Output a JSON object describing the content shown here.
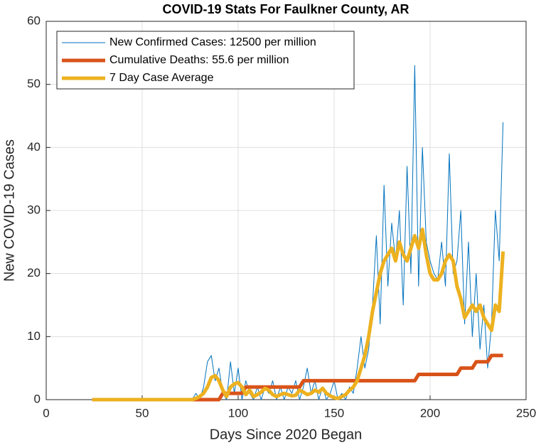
{
  "chart_data": {
    "type": "line",
    "title": "COVID-19 Stats For Faulkner County, AR",
    "xlabel": "Days Since 2020 Began",
    "ylabel": "New COVID-19 Cases",
    "xlim": [
      0,
      250
    ],
    "ylim": [
      0,
      60
    ],
    "xticks": [
      0,
      50,
      100,
      150,
      200,
      250
    ],
    "yticks": [
      0,
      10,
      20,
      30,
      40,
      50,
      60
    ],
    "grid": true,
    "legend": "upper left",
    "x": [
      24,
      26,
      28,
      30,
      32,
      34,
      36,
      38,
      40,
      42,
      44,
      46,
      48,
      50,
      52,
      54,
      56,
      58,
      60,
      62,
      64,
      66,
      68,
      70,
      72,
      74,
      76,
      78,
      80,
      82,
      84,
      86,
      88,
      90,
      92,
      94,
      96,
      98,
      100,
      102,
      104,
      106,
      108,
      110,
      112,
      114,
      116,
      118,
      120,
      122,
      124,
      126,
      128,
      130,
      132,
      134,
      136,
      138,
      140,
      142,
      144,
      146,
      148,
      150,
      152,
      154,
      156,
      158,
      160,
      162,
      164,
      166,
      168,
      170,
      172,
      174,
      176,
      178,
      180,
      182,
      184,
      186,
      188,
      190,
      192,
      194,
      196,
      198,
      200,
      202,
      204,
      206,
      208,
      210,
      212,
      214,
      216,
      218,
      220,
      222,
      224,
      226,
      228,
      230,
      232,
      234,
      236,
      238
    ],
    "series": [
      {
        "name": "New Confirmed Cases: 12500 per million",
        "color": "#0072bd",
        "width": 1,
        "values": [
          0,
          0,
          0,
          0,
          0,
          0,
          0,
          0,
          0,
          0,
          0,
          0,
          0,
          0,
          0,
          0,
          0,
          0,
          0,
          0,
          0,
          0,
          0,
          0,
          0,
          0,
          0,
          1,
          0,
          2,
          6,
          7,
          3,
          5,
          1,
          0,
          6,
          1,
          5,
          0,
          3,
          1,
          0,
          2,
          0,
          2,
          1,
          3,
          0,
          2,
          0,
          2,
          1,
          3,
          0,
          2,
          5,
          1,
          3,
          0,
          2,
          0,
          1,
          3,
          0,
          1,
          0,
          2,
          1,
          5,
          10,
          5,
          8,
          15,
          26,
          12,
          34,
          18,
          28,
          22,
          30,
          15,
          37,
          20,
          53,
          18,
          40,
          25,
          22,
          20,
          19,
          25,
          18,
          39,
          20,
          22,
          30,
          12,
          25,
          10,
          20,
          8,
          15,
          5,
          12,
          30,
          22,
          44
        ]
      },
      {
        "name": "Cumulative Deaths: 55.6 per million",
        "color": "#d95319",
        "width": 5,
        "values": [
          0,
          0,
          0,
          0,
          0,
          0,
          0,
          0,
          0,
          0,
          0,
          0,
          0,
          0,
          0,
          0,
          0,
          0,
          0,
          0,
          0,
          0,
          0,
          0,
          0,
          0,
          0,
          0,
          0,
          0,
          0,
          0,
          0,
          0,
          1,
          1,
          1,
          1,
          1,
          1,
          2,
          2,
          2,
          2,
          2,
          2,
          2,
          2,
          2,
          2,
          2,
          2,
          2,
          2,
          2,
          3,
          3,
          3,
          3,
          3,
          3,
          3,
          3,
          3,
          3,
          3,
          3,
          3,
          3,
          3,
          3,
          3,
          3,
          3,
          3,
          3,
          3,
          3,
          3,
          3,
          3,
          3,
          3,
          3,
          3,
          4,
          4,
          4,
          4,
          4,
          4,
          4,
          4,
          4,
          4,
          4,
          5,
          5,
          5,
          5,
          6,
          6,
          6,
          6,
          7,
          7,
          7,
          7
        ]
      },
      {
        "name": "7 Day Case Average",
        "color": "#edb120",
        "width": 5,
        "values": [
          0,
          0,
          0,
          0,
          0,
          0,
          0,
          0,
          0,
          0,
          0,
          0,
          0,
          0,
          0,
          0,
          0,
          0,
          0,
          0,
          0,
          0,
          0,
          0,
          0,
          0,
          0,
          0.2,
          0.5,
          1,
          2,
          3.5,
          3.8,
          3,
          1.5,
          0.5,
          2,
          2.5,
          2.7,
          2,
          0.8,
          1.5,
          0.5,
          0.8,
          1.2,
          1.8,
          1.5,
          0.8,
          0.5,
          0.8,
          1,
          0.8,
          0.6,
          0.7,
          1.5,
          1.2,
          0.8,
          1,
          1.5,
          1.2,
          1.8,
          1,
          0.6,
          0.3,
          0.2,
          0.5,
          0.8,
          1.5,
          2,
          3,
          5,
          7,
          10,
          14,
          17,
          20,
          22,
          23,
          24,
          22,
          25,
          23,
          22,
          24,
          26,
          24,
          27,
          23,
          20,
          19,
          19,
          20,
          22,
          23,
          22,
          18,
          16,
          13,
          14,
          15,
          14,
          15,
          13,
          12,
          11,
          15,
          14,
          23.5
        ]
      }
    ]
  }
}
